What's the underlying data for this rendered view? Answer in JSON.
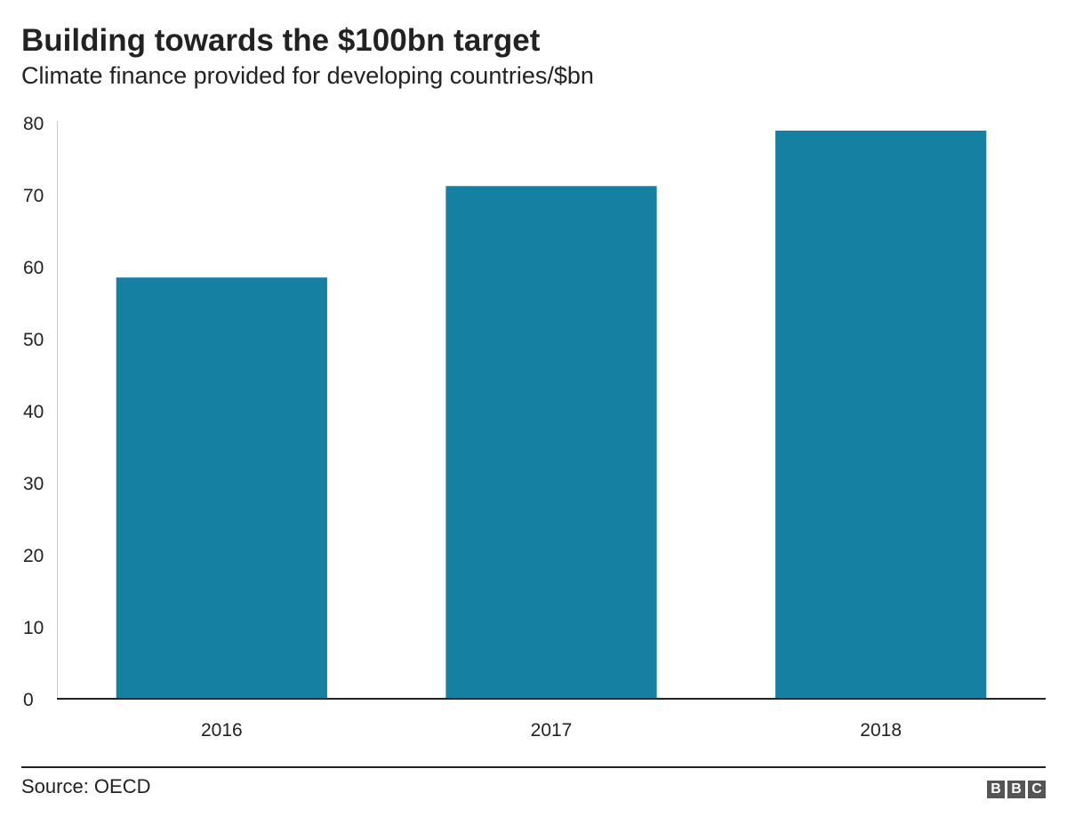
{
  "title": "Building towards the $100bn target",
  "subtitle": "Climate finance provided for developing countries/$bn",
  "source": "Source: OECD",
  "logo": [
    "B",
    "B",
    "C"
  ],
  "colors": {
    "bar": "#1580a2",
    "axis": "#222222",
    "grid": "#cccccc",
    "text": "#222222"
  },
  "chart_data": {
    "type": "bar",
    "categories": [
      "2016",
      "2017",
      "2018"
    ],
    "values": [
      58.5,
      71.2,
      78.9
    ],
    "ylim": [
      0,
      80
    ],
    "yticks": [
      0,
      10,
      20,
      30,
      40,
      50,
      60,
      70,
      80
    ],
    "title": "Building towards the $100bn target",
    "xlabel": "",
    "ylabel": "",
    "grid": false,
    "legend": "none"
  }
}
